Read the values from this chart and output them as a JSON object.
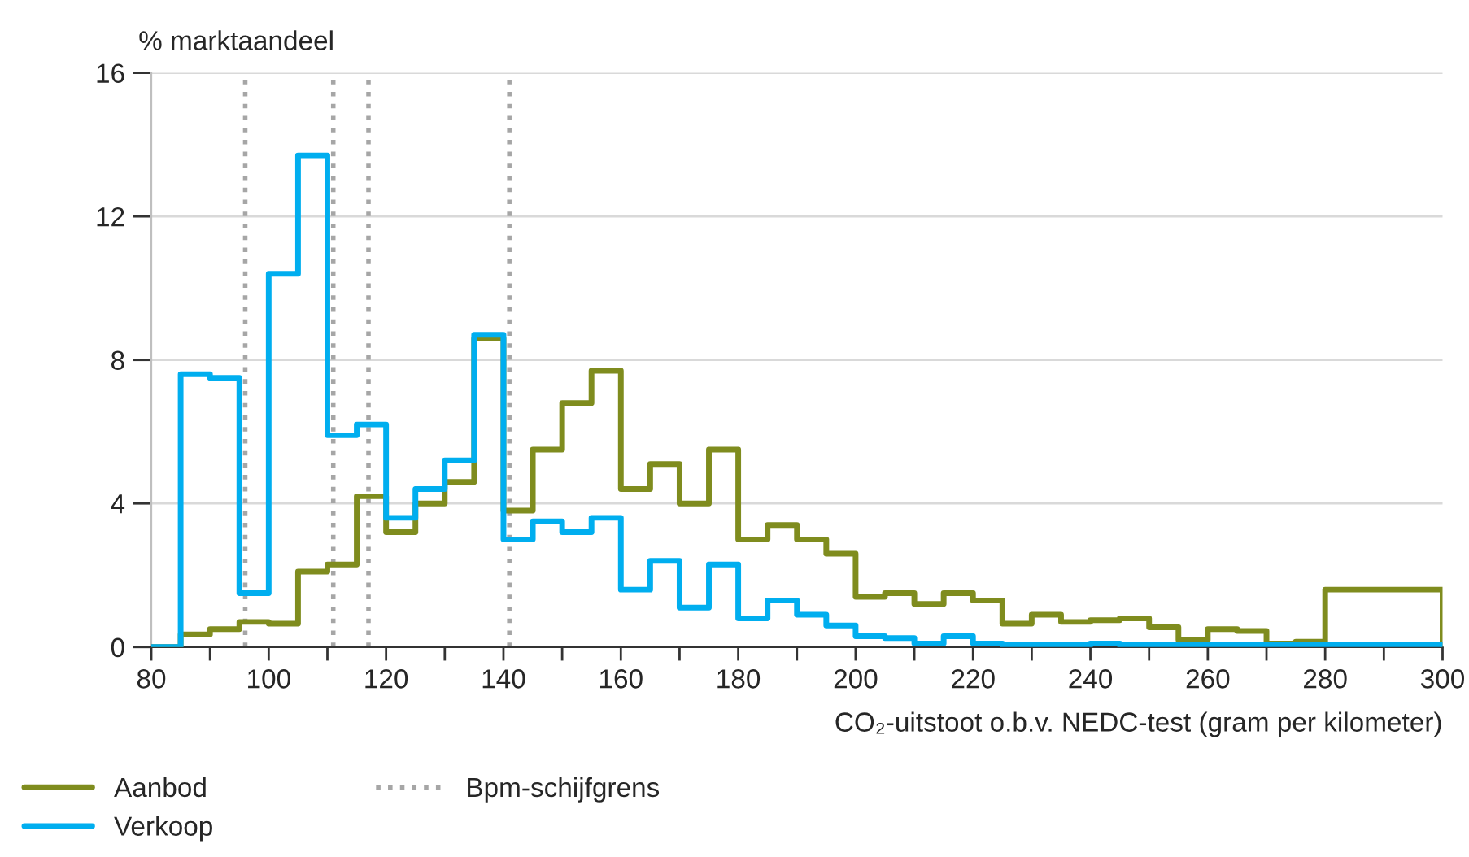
{
  "chart_data": {
    "type": "histogram",
    "ylabel": "% marktaandeel",
    "xlabel": "CO₂-uitstoot o.b.v. NEDC-test (gram per kilometer)",
    "bins": [
      80,
      85,
      90,
      95,
      100,
      105,
      110,
      115,
      120,
      125,
      130,
      135,
      140,
      145,
      150,
      155,
      160,
      165,
      170,
      175,
      180,
      185,
      190,
      195,
      200,
      205,
      210,
      215,
      220,
      225,
      230,
      235,
      240,
      245,
      250,
      255,
      260,
      265,
      270,
      275,
      280,
      300
    ],
    "series": [
      {
        "name": "Aanbod",
        "color": "#7f8c1e",
        "values": [
          0,
          0.35,
          0.5,
          0.7,
          0.65,
          2.1,
          2.3,
          4.2,
          3.2,
          4.0,
          4.6,
          8.6,
          3.8,
          5.5,
          6.8,
          7.7,
          4.4,
          5.1,
          4.0,
          5.5,
          3.0,
          3.4,
          3.0,
          2.6,
          1.4,
          1.5,
          1.2,
          1.5,
          1.3,
          0.65,
          0.9,
          0.7,
          0.75,
          0.8,
          0.55,
          0.2,
          0.5,
          0.45,
          0.1,
          0.15,
          1.6
        ]
      },
      {
        "name": "Verkoop",
        "color": "#00aeef",
        "values": [
          0,
          7.6,
          7.5,
          1.5,
          10.4,
          13.7,
          5.9,
          6.2,
          3.6,
          4.4,
          5.2,
          8.7,
          3.0,
          3.5,
          3.2,
          3.6,
          1.6,
          2.4,
          1.1,
          2.3,
          0.8,
          1.3,
          0.9,
          0.6,
          0.3,
          0.25,
          0.1,
          0.3,
          0.1,
          0.05,
          0.05,
          0.05,
          0.1,
          0.05,
          0.05,
          0.05,
          0.05,
          0.05,
          0.05,
          0.05,
          0.05
        ]
      }
    ],
    "xlim": [
      80,
      300
    ],
    "xticks": [
      80,
      {
        "value": 90,
        "label": null
      },
      100,
      {
        "value": 110,
        "label": null
      },
      120,
      {
        "value": 130,
        "label": null
      },
      140,
      {
        "value": 150,
        "label": null
      },
      160,
      {
        "value": 170,
        "label": null
      },
      180,
      {
        "value": 190,
        "label": null
      },
      200,
      {
        "value": 210,
        "label": null
      },
      220,
      {
        "value": 230,
        "label": null
      },
      240,
      {
        "value": 250,
        "label": null
      },
      260,
      {
        "value": 270,
        "label": null
      },
      280,
      {
        "value": 290,
        "label": null
      },
      300
    ],
    "ylim": [
      0,
      16
    ],
    "yticks": [
      0,
      4,
      8,
      12,
      16
    ],
    "ref_lines": [
      {
        "axis": "x",
        "value": 96,
        "label": "Bpm-schijfgrens",
        "color": "#a6a6a6",
        "line_style": "dotted"
      },
      {
        "axis": "x",
        "value": 111,
        "color": "#a6a6a6",
        "line_style": "dotted"
      },
      {
        "axis": "x",
        "value": 117,
        "color": "#a6a6a6",
        "line_style": "dotted"
      },
      {
        "axis": "x",
        "value": 141,
        "color": "#a6a6a6",
        "line_style": "dotted"
      }
    ],
    "grid": "y",
    "legend": "bottom"
  }
}
